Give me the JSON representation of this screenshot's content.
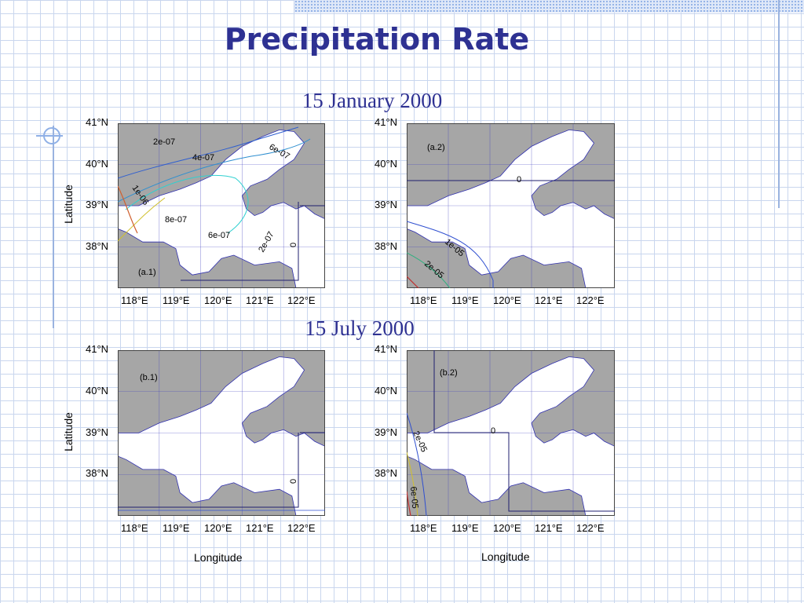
{
  "slide": {
    "title": "Precipitation Rate",
    "subtitle_top": "15 January 2000",
    "subtitle_bottom": "15 July 2000"
  },
  "axes": {
    "ylabel": "Latitude",
    "xlabel": "Longitude",
    "lat_ticks": [
      "41°N",
      "40°N",
      "39°N",
      "38°N"
    ],
    "lon_ticks": [
      "118°E",
      "119°E",
      "120°E",
      "121°E",
      "122°E"
    ]
  },
  "panels": [
    {
      "id": "a.1",
      "label": "(a.1)",
      "contour_labels": [
        "2e-07",
        "4e-07",
        "6e-07",
        "1e-06",
        "8e-07",
        "6e-07",
        "2e-07",
        "0"
      ]
    },
    {
      "id": "a.2",
      "label": "(a.2)",
      "contour_labels": [
        "0",
        "1e-05",
        "2e-05"
      ]
    },
    {
      "id": "b.1",
      "label": "(b.1)",
      "contour_labels": [
        "0"
      ]
    },
    {
      "id": "b.2",
      "label": "(b.2)",
      "contour_labels": [
        "0",
        "2e-05",
        "6e-05"
      ]
    }
  ],
  "colors": {
    "title": "#2e3192",
    "land": "#a6a6a6",
    "grid": "#3f3fbf"
  }
}
